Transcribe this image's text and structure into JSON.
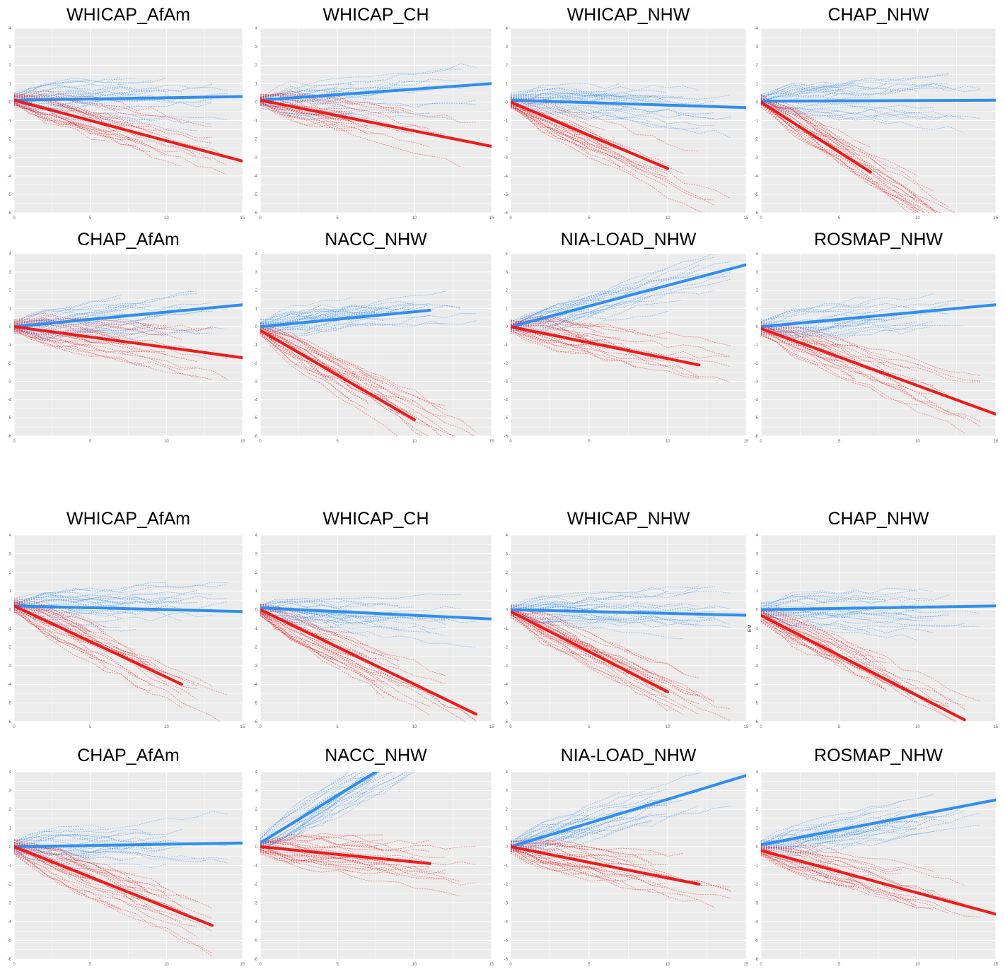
{
  "colors": {
    "blue": "#2f8ef0",
    "red": "#f01a1a",
    "panel_bg": "#ebebeb",
    "grid": "#ffffff"
  },
  "chart_data": [
    {
      "type": "line",
      "title": "WHICAP_AfAm",
      "xlim": [
        0,
        15
      ],
      "ylim": [
        -6,
        4
      ],
      "xticks": [
        "0",
        "5",
        "10",
        "15"
      ],
      "yticks": [
        "-6",
        "-5",
        "-4",
        "-3",
        "-2",
        "-1",
        "0",
        "1",
        "2",
        "3",
        "4"
      ],
      "series": [
        {
          "color": "blue",
          "x": [
            0,
            15
          ],
          "values": [
            0.1,
            0.3
          ]
        },
        {
          "color": "red",
          "x": [
            0,
            15
          ],
          "values": [
            0.1,
            -3.2
          ]
        }
      ]
    },
    {
      "type": "line",
      "title": "WHICAP_CH",
      "xlim": [
        0,
        15
      ],
      "ylim": [
        -6,
        4
      ],
      "xticks": [
        "0",
        "5",
        "10",
        "15"
      ],
      "yticks": [
        "-6",
        "-5",
        "-4",
        "-3",
        "-2",
        "-1",
        "0",
        "1",
        "2",
        "3",
        "4"
      ],
      "series": [
        {
          "color": "blue",
          "x": [
            0,
            15
          ],
          "values": [
            0.1,
            1.0
          ]
        },
        {
          "color": "red",
          "x": [
            0,
            15
          ],
          "values": [
            0.1,
            -2.4
          ]
        }
      ]
    },
    {
      "type": "line",
      "title": "WHICAP_NHW",
      "xlim": [
        0,
        15
      ],
      "ylim": [
        -6,
        4
      ],
      "xticks": [
        "0",
        "5",
        "10",
        "15"
      ],
      "yticks": [
        "-6",
        "-5",
        "-4",
        "-3",
        "-2",
        "-1",
        "0",
        "1",
        "2",
        "3",
        "4"
      ],
      "series": [
        {
          "color": "blue",
          "x": [
            0,
            15
          ],
          "values": [
            0.1,
            -0.3
          ]
        },
        {
          "color": "red",
          "x": [
            0,
            10
          ],
          "values": [
            0.0,
            -3.6
          ]
        }
      ]
    },
    {
      "type": "line",
      "title": "CHAP_NHW",
      "xlim": [
        0,
        15
      ],
      "ylim": [
        -6,
        4
      ],
      "xticks": [
        "0",
        "5",
        "10",
        "15"
      ],
      "yticks": [
        "-6",
        "-5",
        "-4",
        "-3",
        "-2",
        "-1",
        "0",
        "1",
        "2",
        "3",
        "4"
      ],
      "series": [
        {
          "color": "blue",
          "x": [
            0,
            15
          ],
          "values": [
            0.05,
            0.1
          ]
        },
        {
          "color": "red",
          "x": [
            0,
            7
          ],
          "values": [
            0.0,
            -3.8
          ]
        }
      ]
    },
    {
      "type": "line",
      "title": "CHAP_AfAm",
      "xlim": [
        0,
        15
      ],
      "ylim": [
        -6,
        4
      ],
      "xticks": [
        "0",
        "5",
        "10",
        "15"
      ],
      "yticks": [
        "-6",
        "-5",
        "-4",
        "-3",
        "-2",
        "-1",
        "0",
        "1",
        "2",
        "3",
        "4"
      ],
      "series": [
        {
          "color": "blue",
          "x": [
            0,
            15
          ],
          "values": [
            0.0,
            1.2
          ]
        },
        {
          "color": "red",
          "x": [
            0,
            15
          ],
          "values": [
            0.0,
            -1.7
          ]
        }
      ]
    },
    {
      "type": "line",
      "title": "NACC_NHW",
      "xlim": [
        0,
        15
      ],
      "ylim": [
        -6,
        4
      ],
      "xticks": [
        "0",
        "5",
        "10",
        "15"
      ],
      "yticks": [
        "-6",
        "-5",
        "-4",
        "-3",
        "-2",
        "-1",
        "0",
        "1",
        "2",
        "3",
        "4"
      ],
      "series": [
        {
          "color": "blue",
          "x": [
            0,
            11
          ],
          "values": [
            0.0,
            0.9
          ]
        },
        {
          "color": "red",
          "x": [
            0,
            10
          ],
          "values": [
            -0.2,
            -5.1
          ]
        }
      ]
    },
    {
      "type": "line",
      "title": "NIA-LOAD_NHW",
      "xlim": [
        0,
        15
      ],
      "ylim": [
        -6,
        4
      ],
      "xticks": [
        "0",
        "5",
        "10",
        "15"
      ],
      "yticks": [
        "-6",
        "-5",
        "-4",
        "-3",
        "-2",
        "-1",
        "0",
        "1",
        "2",
        "3",
        "4"
      ],
      "series": [
        {
          "color": "blue",
          "x": [
            0,
            15
          ],
          "values": [
            0.0,
            3.4
          ]
        },
        {
          "color": "red",
          "x": [
            0,
            12
          ],
          "values": [
            0.0,
            -2.1
          ]
        }
      ]
    },
    {
      "type": "line",
      "title": "ROSMAP_NHW",
      "xlim": [
        0,
        15
      ],
      "ylim": [
        -6,
        4
      ],
      "xticks": [
        "0",
        "5",
        "10",
        "15"
      ],
      "yticks": [
        "-6",
        "-5",
        "-4",
        "-3",
        "-2",
        "-1",
        "0",
        "1",
        "2",
        "3",
        "4"
      ],
      "series": [
        {
          "color": "blue",
          "x": [
            0,
            15
          ],
          "values": [
            0.0,
            1.2
          ]
        },
        {
          "color": "red",
          "x": [
            0,
            15
          ],
          "values": [
            -0.1,
            -4.8
          ]
        }
      ]
    },
    {
      "type": "line",
      "title": "WHICAP_AfAm",
      "xlim": [
        0,
        15
      ],
      "ylim": [
        -6,
        4
      ],
      "xticks": [
        "0",
        "5",
        "10",
        "15"
      ],
      "yticks": [
        "-6",
        "-5",
        "-4",
        "-3",
        "-2",
        "-1",
        "0",
        "1",
        "2",
        "3",
        "4"
      ],
      "series": [
        {
          "color": "blue",
          "x": [
            0,
            15
          ],
          "values": [
            0.2,
            -0.1
          ]
        },
        {
          "color": "red",
          "x": [
            0,
            11
          ],
          "values": [
            0.2,
            -4.0
          ]
        }
      ]
    },
    {
      "type": "line",
      "title": "WHICAP_CH",
      "xlim": [
        0,
        15
      ],
      "ylim": [
        -6,
        4
      ],
      "xticks": [
        "0",
        "5",
        "10",
        "15"
      ],
      "yticks": [
        "-6",
        "-5",
        "-4",
        "-3",
        "-2",
        "-1",
        "0",
        "1",
        "2",
        "3",
        "4"
      ],
      "series": [
        {
          "color": "blue",
          "x": [
            0,
            15
          ],
          "values": [
            0.1,
            -0.5
          ]
        },
        {
          "color": "red",
          "x": [
            0,
            14
          ],
          "values": [
            0.0,
            -5.6
          ]
        }
      ]
    },
    {
      "type": "line",
      "title": "WHICAP_NHW",
      "xlim": [
        0,
        15
      ],
      "ylim": [
        -6,
        4
      ],
      "xticks": [
        "0",
        "5",
        "10",
        "15"
      ],
      "yticks": [
        "-6",
        "-5",
        "-4",
        "-3",
        "-2",
        "-1",
        "0",
        "1",
        "2",
        "3",
        "4"
      ],
      "series": [
        {
          "color": "blue",
          "x": [
            0,
            15
          ],
          "values": [
            0.0,
            -0.3
          ]
        },
        {
          "color": "red",
          "x": [
            0,
            10
          ],
          "values": [
            -0.1,
            -4.4
          ]
        }
      ]
    },
    {
      "type": "line",
      "title": "CHAP_NHW",
      "xlim": [
        0,
        15
      ],
      "ylim": [
        -6,
        4
      ],
      "ylabel": "EM",
      "xticks": [
        "0",
        "5",
        "10",
        "15"
      ],
      "yticks": [
        "-6",
        "-5",
        "-4",
        "-3",
        "-2",
        "-1",
        "0",
        "1",
        "2",
        "3",
        "4"
      ],
      "series": [
        {
          "color": "blue",
          "x": [
            0,
            15
          ],
          "values": [
            0.0,
            0.2
          ]
        },
        {
          "color": "red",
          "x": [
            0,
            13
          ],
          "values": [
            -0.3,
            -5.9
          ]
        }
      ]
    },
    {
      "type": "line",
      "title": "CHAP_AfAm",
      "xlim": [
        0,
        15
      ],
      "ylim": [
        -6,
        4
      ],
      "xticks": [
        "0",
        "5",
        "10",
        "15"
      ],
      "yticks": [
        "-6",
        "-5",
        "-4",
        "-3",
        "-2",
        "-1",
        "0",
        "1",
        "2",
        "3",
        "4"
      ],
      "series": [
        {
          "color": "blue",
          "x": [
            0,
            15
          ],
          "values": [
            0.0,
            0.2
          ]
        },
        {
          "color": "red",
          "x": [
            0,
            13
          ],
          "values": [
            0.0,
            -4.2
          ]
        }
      ]
    },
    {
      "type": "line",
      "title": "NACC_NHW",
      "xlim": [
        0,
        15
      ],
      "ylim": [
        -6,
        4
      ],
      "xticks": [
        "0",
        "5",
        "10",
        "15"
      ],
      "yticks": [
        "-6",
        "-5",
        "-4",
        "-3",
        "-2",
        "-1",
        "0",
        "1",
        "2",
        "3",
        "4"
      ],
      "series": [
        {
          "color": "blue",
          "x": [
            0,
            7.5
          ],
          "values": [
            0.2,
            4.0
          ]
        },
        {
          "color": "red",
          "x": [
            0,
            11
          ],
          "values": [
            0.0,
            -0.9
          ]
        }
      ]
    },
    {
      "type": "line",
      "title": "NIA-LOAD_NHW",
      "xlim": [
        0,
        15
      ],
      "ylim": [
        -6,
        4
      ],
      "xticks": [
        "0",
        "5",
        "10",
        "15"
      ],
      "yticks": [
        "-6",
        "-5",
        "-4",
        "-3",
        "-2",
        "-1",
        "0",
        "1",
        "2",
        "3",
        "4"
      ],
      "series": [
        {
          "color": "blue",
          "x": [
            0,
            15
          ],
          "values": [
            0.0,
            3.8
          ]
        },
        {
          "color": "red",
          "x": [
            0,
            12
          ],
          "values": [
            0.0,
            -2.0
          ]
        }
      ]
    },
    {
      "type": "line",
      "title": "ROSMAP_NHW",
      "xlim": [
        0,
        15
      ],
      "ylim": [
        -6,
        4
      ],
      "xticks": [
        "0",
        "5",
        "10",
        "15"
      ],
      "yticks": [
        "-6",
        "-5",
        "-4",
        "-3",
        "-2",
        "-1",
        "0",
        "1",
        "2",
        "3",
        "4"
      ],
      "series": [
        {
          "color": "blue",
          "x": [
            0,
            15
          ],
          "values": [
            0.1,
            2.5
          ]
        },
        {
          "color": "red",
          "x": [
            0,
            15
          ],
          "values": [
            -0.2,
            -3.6
          ]
        }
      ]
    }
  ]
}
